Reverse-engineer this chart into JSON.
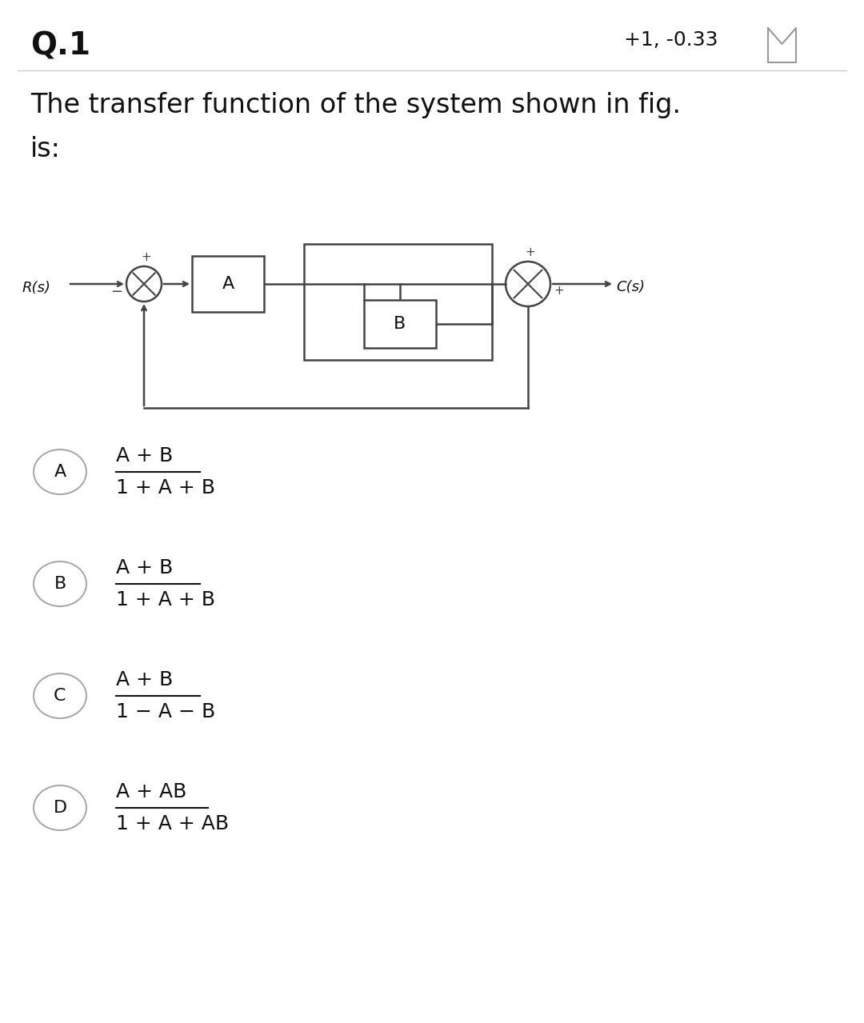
{
  "bg_color": "#ffffff",
  "title_text": "Q.1",
  "score_text": "+1, -0.33",
  "question_line1": "The transfer function of the system shown in fig.",
  "question_line2": "is:",
  "options": [
    {
      "label": "A",
      "numerator": "A + B",
      "denominator": "1 + A + B"
    },
    {
      "label": "B",
      "numerator": "A + B",
      "denominator": "1 + A + B"
    },
    {
      "label": "C",
      "numerator": "A + B",
      "denominator": "1 − A − B"
    },
    {
      "label": "D",
      "numerator": "A + AB",
      "denominator": "1 + A + AB"
    }
  ],
  "line_color": "#444444",
  "text_color": "#111111",
  "label_color": "#555555"
}
